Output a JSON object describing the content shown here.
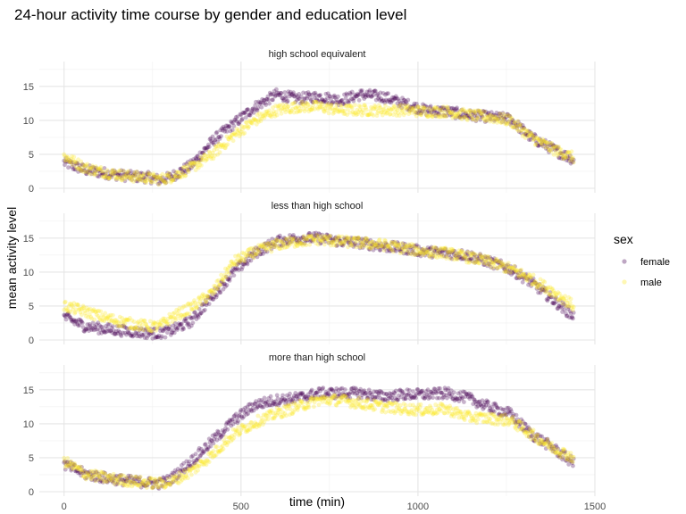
{
  "chart_data": {
    "type": "scatter",
    "title": "24-hour activity time course by gender and education level",
    "xlabel": "time (min)",
    "ylabel": "mean activity level",
    "xlim": [
      -70,
      1500
    ],
    "ylim": [
      0,
      18
    ],
    "x_ticks": [
      0,
      500,
      1000,
      1500
    ],
    "y_ticks": [
      0,
      5,
      10,
      15
    ],
    "grid": true,
    "legend": {
      "title": "sex",
      "position": "right",
      "entries": [
        {
          "name": "female",
          "color": "#440154"
        },
        {
          "name": "male",
          "color": "#FDE725"
        }
      ]
    },
    "panels": [
      {
        "title": "high school equivalent",
        "series": [
          {
            "name": "female",
            "x": [
              0,
              60,
              120,
              180,
              240,
              270,
              300,
              360,
              420,
              480,
              540,
              600,
              660,
              720,
              780,
              840,
              900,
              960,
              1020,
              1080,
              1140,
              1200,
              1260,
              1320,
              1380,
              1440
            ],
            "y": [
              3.8,
              2.7,
              2.2,
              1.8,
              1.6,
              1.2,
              1.6,
              3.4,
              7.0,
              9.5,
              12.0,
              13.8,
              13.2,
              13.5,
              13.0,
              13.8,
              13.5,
              12.5,
              11.5,
              11.3,
              10.8,
              10.5,
              10.2,
              7.5,
              5.8,
              4.2
            ]
          },
          {
            "name": "male",
            "x": [
              0,
              60,
              120,
              180,
              240,
              270,
              300,
              360,
              420,
              480,
              540,
              600,
              660,
              720,
              780,
              840,
              900,
              960,
              1020,
              1080,
              1140,
              1200,
              1260,
              1320,
              1380,
              1440
            ],
            "y": [
              4.7,
              3.0,
              2.3,
              1.8,
              1.5,
              1.3,
              1.6,
              3.0,
              5.0,
              7.8,
              10.0,
              11.5,
              12.0,
              12.0,
              11.5,
              11.5,
              11.5,
              11.5,
              11.3,
              11.3,
              10.8,
              10.5,
              10.0,
              7.5,
              5.8,
              4.5
            ]
          }
        ]
      },
      {
        "title": "less than high school",
        "series": [
          {
            "name": "female",
            "x": [
              0,
              60,
              120,
              180,
              240,
              270,
              300,
              360,
              420,
              480,
              540,
              600,
              660,
              720,
              780,
              840,
              900,
              960,
              1020,
              1080,
              1140,
              1200,
              1260,
              1320,
              1380,
              1440
            ],
            "y": [
              3.4,
              2.0,
              1.6,
              1.3,
              1.0,
              1.0,
              1.3,
              2.8,
              6.5,
              10.0,
              12.8,
              14.5,
              15.0,
              15.0,
              14.5,
              14.3,
              13.8,
              13.5,
              13.0,
              12.8,
              12.5,
              11.5,
              10.5,
              8.5,
              6.0,
              3.5
            ]
          },
          {
            "name": "male",
            "x": [
              0,
              60,
              120,
              180,
              240,
              270,
              300,
              360,
              420,
              480,
              540,
              600,
              660,
              720,
              780,
              840,
              900,
              960,
              1020,
              1080,
              1140,
              1200,
              1260,
              1320,
              1380,
              1440
            ],
            "y": [
              5.0,
              4.2,
              3.2,
              2.5,
              2.0,
              2.0,
              3.2,
              4.8,
              7.0,
              11.5,
              13.0,
              14.0,
              14.5,
              14.8,
              14.5,
              14.3,
              14.0,
              13.5,
              13.0,
              12.8,
              12.2,
              11.5,
              10.5,
              9.0,
              7.2,
              5.0
            ]
          }
        ]
      },
      {
        "title": "more than high school",
        "series": [
          {
            "name": "female",
            "x": [
              0,
              60,
              120,
              180,
              240,
              270,
              300,
              360,
              420,
              480,
              540,
              600,
              660,
              720,
              780,
              840,
              900,
              960,
              1020,
              1080,
              1140,
              1200,
              1260,
              1320,
              1380,
              1440
            ],
            "y": [
              4.0,
              2.6,
              2.0,
              1.6,
              1.3,
              1.2,
              1.8,
              4.5,
              7.5,
              10.5,
              12.8,
              13.5,
              13.8,
              14.5,
              14.5,
              14.5,
              14.0,
              14.3,
              14.3,
              14.5,
              13.8,
              12.5,
              11.5,
              8.5,
              6.5,
              4.2
            ]
          },
          {
            "name": "male",
            "x": [
              0,
              60,
              120,
              180,
              240,
              270,
              300,
              360,
              420,
              480,
              540,
              600,
              660,
              720,
              780,
              840,
              900,
              960,
              1020,
              1080,
              1140,
              1200,
              1260,
              1320,
              1380,
              1440
            ],
            "y": [
              4.5,
              2.6,
              2.0,
              1.6,
              1.3,
              1.2,
              1.4,
              3.0,
              5.5,
              8.5,
              10.2,
              11.5,
              12.5,
              13.5,
              13.5,
              13.0,
              12.5,
              12.2,
              12.0,
              12.2,
              11.0,
              10.8,
              10.5,
              8.5,
              6.5,
              5.0
            ]
          }
        ]
      }
    ]
  }
}
